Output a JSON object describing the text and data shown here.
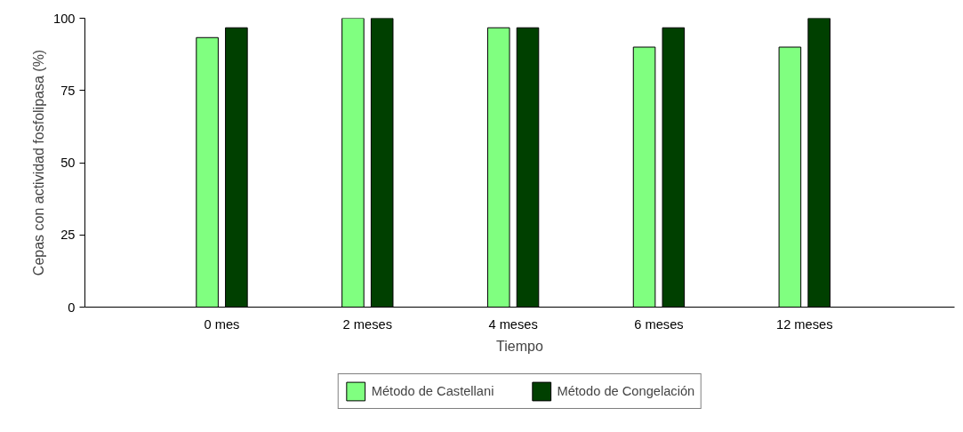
{
  "chart_data": {
    "type": "bar",
    "xlabel": "Tiempo",
    "ylabel": "Cepas con actividad fosfolipasa (%)",
    "categories": [
      "0 mes",
      "2 meses",
      "4 meses",
      "6 meses",
      "12 meses"
    ],
    "series": [
      {
        "name": "Método de Castellani",
        "color": "#80ff80",
        "values": [
          93.3,
          100,
          96.7,
          90,
          90
        ]
      },
      {
        "name": "Método de Congelación",
        "color": "#004000",
        "values": [
          96.7,
          100,
          96.7,
          96.7,
          100
        ]
      }
    ],
    "ylim": [
      0,
      100
    ],
    "yticks": [
      0,
      25,
      50,
      75,
      100
    ],
    "grid": false,
    "legend": "bottom"
  }
}
